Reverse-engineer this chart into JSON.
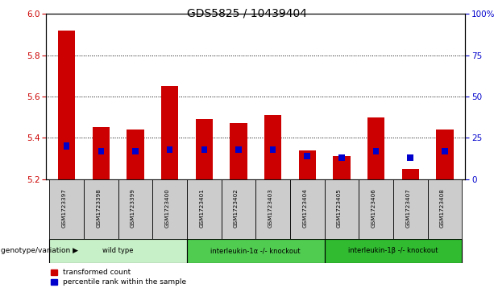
{
  "title": "GDS5825 / 10439404",
  "samples": [
    "GSM1723397",
    "GSM1723398",
    "GSM1723399",
    "GSM1723400",
    "GSM1723401",
    "GSM1723402",
    "GSM1723403",
    "GSM1723404",
    "GSM1723405",
    "GSM1723406",
    "GSM1723407",
    "GSM1723408"
  ],
  "red_values": [
    5.92,
    5.45,
    5.44,
    5.65,
    5.49,
    5.47,
    5.51,
    5.34,
    5.31,
    5.5,
    5.25,
    5.44
  ],
  "blue_values": [
    20,
    17,
    17,
    18,
    18,
    18,
    18,
    14,
    13,
    17,
    13,
    17
  ],
  "ylim_left": [
    5.2,
    6.0
  ],
  "ylim_right": [
    0,
    100
  ],
  "yticks_left": [
    5.2,
    5.4,
    5.6,
    5.8,
    6.0
  ],
  "yticks_right": [
    0,
    25,
    50,
    75,
    100
  ],
  "ytick_labels_right": [
    "0",
    "25",
    "50",
    "75",
    "100%"
  ],
  "groups": [
    {
      "label": "wild type",
      "start": 0,
      "end": 3,
      "color": "#c8f0c8"
    },
    {
      "label": "interleukin-1α -/- knockout",
      "start": 4,
      "end": 7,
      "color": "#50cc50"
    },
    {
      "label": "interleukin-1β -/- knockout",
      "start": 8,
      "end": 11,
      "color": "#30bb30"
    }
  ],
  "group_row_label": "genotype/variation",
  "legend_red": "transformed count",
  "legend_blue": "percentile rank within the sample",
  "bar_color_red": "#cc0000",
  "bar_color_blue": "#0000cc",
  "background_color": "#ffffff",
  "axis_color_left": "#cc0000",
  "axis_color_right": "#0000cc",
  "title_fontsize": 10,
  "bar_width": 0.5,
  "base_value": 5.2
}
